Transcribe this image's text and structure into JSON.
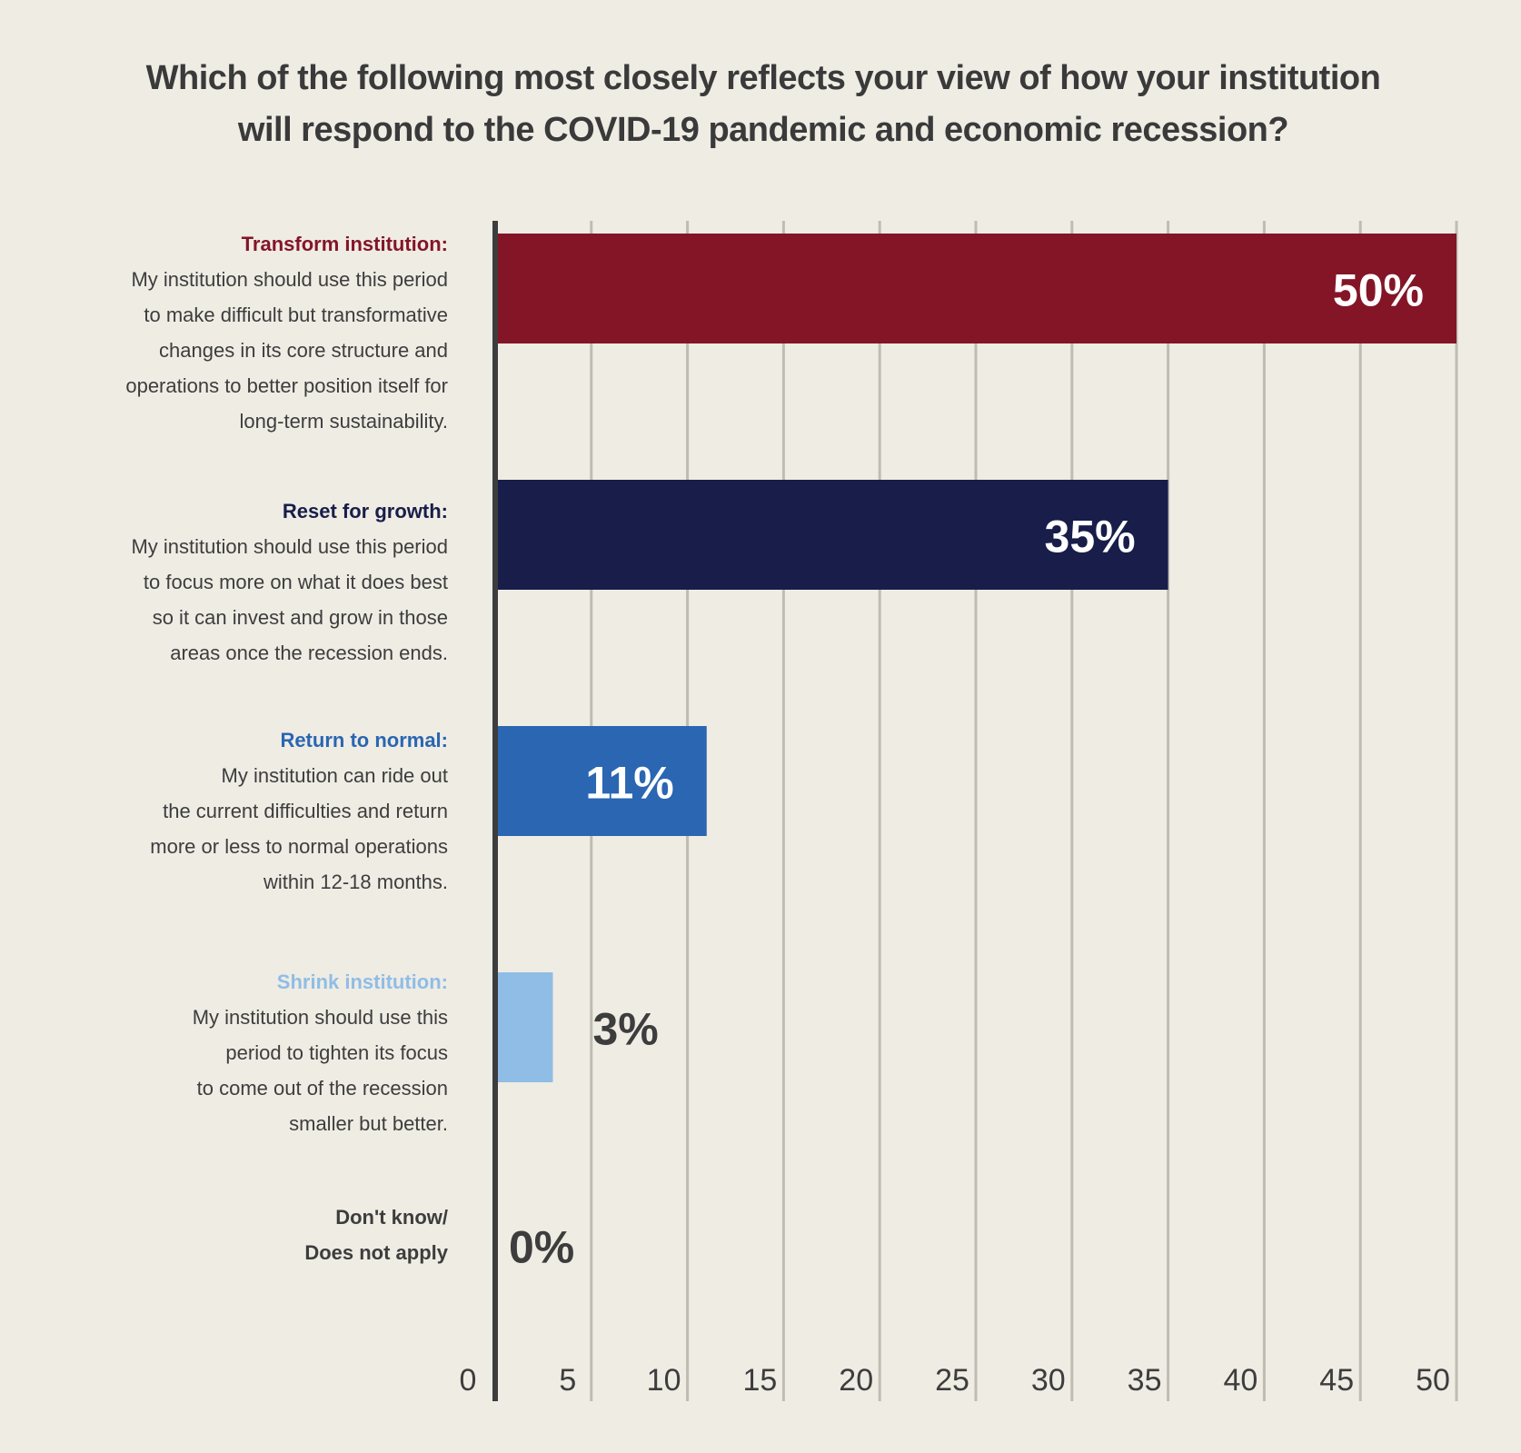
{
  "title": {
    "line1": "Which of the following most closely reflects your view of how your institution",
    "line2": "will respond to the COVID-19 pandemic and economic recession?"
  },
  "categories": [
    {
      "heading": "Transform institution:",
      "desc": [
        "My institution should use this period",
        "to make difficult but transformative",
        "changes in its core structure and",
        "operations to better position itself for",
        "long-term sustainability."
      ],
      "color": "#841527"
    },
    {
      "heading": "Reset for growth:",
      "desc": [
        "My institution should use this period",
        "to focus more on what it does best",
        "so it can invest and grow in those",
        "areas once the recession ends."
      ],
      "color": "#181e49"
    },
    {
      "heading": "Return to normal:",
      "desc": [
        "My institution can ride out",
        "the current difficulties and return",
        "more or less to normal operations",
        "within 12-18 months."
      ],
      "color": "#2a66b2"
    },
    {
      "heading": "Shrink institution:",
      "desc": [
        "My institution should use this",
        "period to tighten its focus",
        "to come out of the recession",
        "smaller but better."
      ],
      "color": "#8fbde6"
    },
    {
      "heading": "Don't know/",
      "heading2": "Does not apply",
      "desc": [],
      "color": "#3d3d3d"
    }
  ],
  "chart_data": {
    "type": "bar",
    "orientation": "horizontal",
    "categories": [
      "Transform institution",
      "Reset for growth",
      "Return to normal",
      "Shrink institution",
      "Don't know/Does not apply"
    ],
    "values": [
      50,
      35,
      11,
      3,
      0
    ],
    "value_labels": [
      "50%",
      "35%",
      "11%",
      "3%",
      "0%"
    ],
    "colors": [
      "#841527",
      "#181e49",
      "#2a66b2",
      "#8fbde6",
      "#3d3d3d"
    ],
    "label_colors": [
      "#ffffff",
      "#ffffff",
      "#ffffff",
      "#3d3d3d",
      "#3d3d3d"
    ],
    "xlim": [
      0,
      50
    ],
    "xticks": [
      0,
      5,
      10,
      15,
      20,
      25,
      30,
      35,
      40,
      45,
      50
    ],
    "grid": true,
    "gridline_color": "#c0bcb3",
    "axis_color": "#3d3d3d"
  }
}
